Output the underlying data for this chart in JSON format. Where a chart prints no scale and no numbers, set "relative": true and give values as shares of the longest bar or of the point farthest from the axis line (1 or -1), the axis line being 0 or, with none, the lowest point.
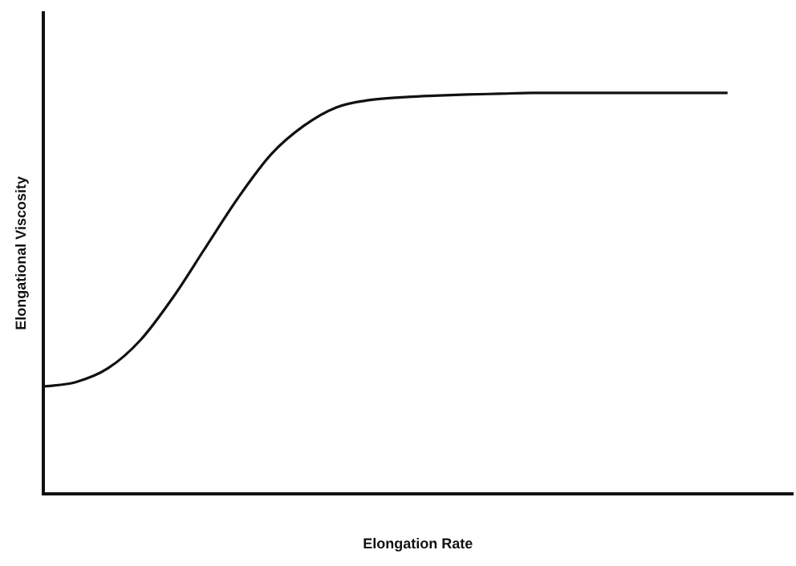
{
  "chart_data": {
    "type": "line",
    "relative": true,
    "xlabel": "Elongation Rate",
    "ylabel": "Elongational Viscosity",
    "categories": [
      null,
      null,
      null,
      null,
      null,
      null,
      null,
      null,
      null,
      null,
      null,
      null,
      null,
      null,
      null,
      null,
      null,
      null,
      null,
      null,
      null,
      null,
      null,
      null
    ],
    "series": [
      {
        "color": "#111111",
        "values": [
          0.267,
          0.278,
          0.313,
          0.384,
          0.491,
          0.616,
          0.74,
          0.847,
          0.918,
          0.964,
          0.982,
          0.989,
          0.993,
          0.996,
          0.998,
          1,
          1,
          1,
          1,
          1,
          1,
          1,
          null,
          null
        ]
      }
    ],
    "grid": false,
    "legend": false,
    "marker": "none",
    "line_style": "solid"
  }
}
